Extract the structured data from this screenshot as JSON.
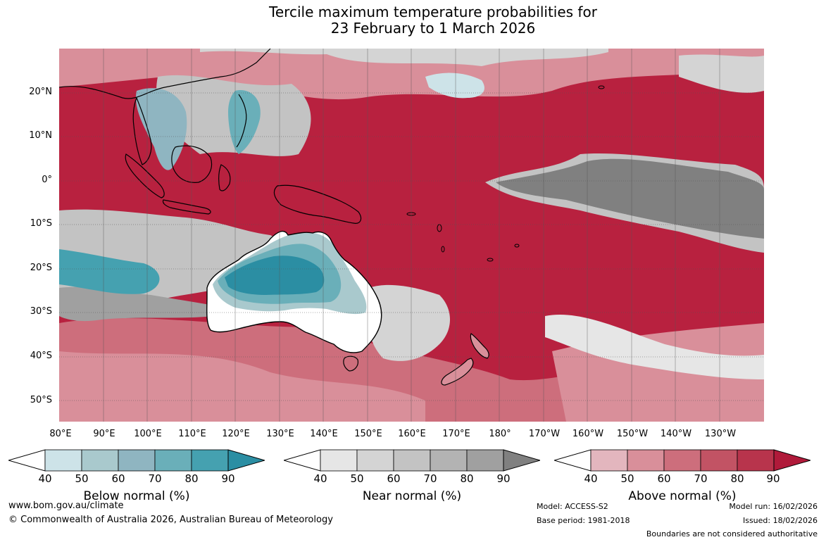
{
  "title": {
    "line1": "Tercile maximum temperature probabilities for",
    "line2": "23 February to 1 March 2026"
  },
  "map": {
    "latitude_labels": [
      "20°N",
      "10°N",
      "0°",
      "10°S",
      "20°S",
      "30°S",
      "40°S",
      "50°S"
    ],
    "longitude_labels": [
      "80°E",
      "90°E",
      "100°E",
      "110°E",
      "120°E",
      "130°E",
      "140°E",
      "150°E",
      "160°E",
      "170°E",
      "180°",
      "170°W",
      "160°W",
      "150°W",
      "140°W",
      "130°W"
    ]
  },
  "legend": [
    {
      "title": "Below normal (%)",
      "ticks": [
        "40",
        "50",
        "60",
        "70",
        "80",
        "90"
      ],
      "colors": [
        "#ffffff",
        "#cde3e8",
        "#a9c9cd",
        "#8fb5c1",
        "#6aafb9",
        "#45a1b0",
        "#2b8ea3"
      ]
    },
    {
      "title": "Near normal (%)",
      "ticks": [
        "40",
        "50",
        "60",
        "70",
        "80",
        "90"
      ],
      "colors": [
        "#ffffff",
        "#e6e6e6",
        "#d4d4d4",
        "#c3c3c3",
        "#b3b3b3",
        "#a0a0a0",
        "#808080"
      ]
    },
    {
      "title": "Above normal (%)",
      "ticks": [
        "40",
        "50",
        "60",
        "70",
        "80",
        "90"
      ],
      "colors": [
        "#ffffff",
        "#e3b6be",
        "#d98f9a",
        "#cd6e7c",
        "#c25364",
        "#b8344c",
        "#b01a3a"
      ]
    }
  ],
  "colors": {
    "ocean_base": "#b8213f",
    "coast": "#000000",
    "grid": "#555555"
  },
  "footer": {
    "website": "www.bom.gov.au/climate",
    "copyright": "© Commonwealth of Australia 2026, Australian Bureau of Meteorology",
    "model": "Model: ACCESS-S2",
    "base_period": "Base period: 1981-2018",
    "model_run": "Model run: 16/02/2026",
    "issued": "Issued: 18/02/2026",
    "disclaimer": "Boundaries are not considered authoritative"
  }
}
